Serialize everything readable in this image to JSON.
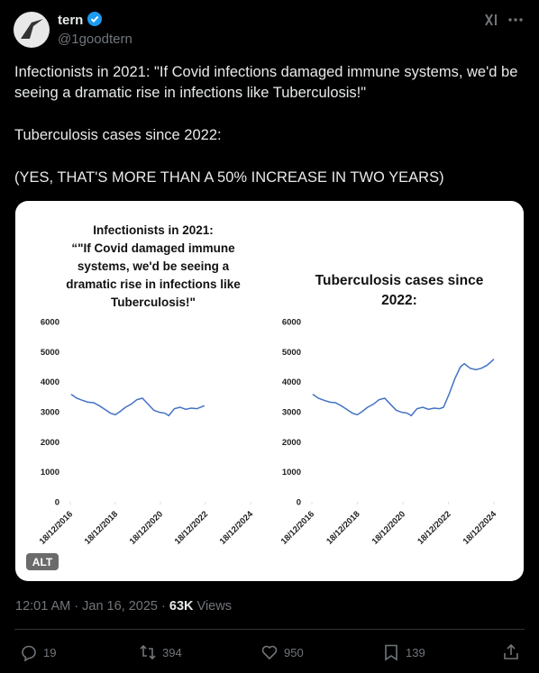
{
  "header": {
    "name": "tern",
    "handle": "@1goodtern"
  },
  "tweet": {
    "text": [
      "Infectionists in 2021: \"If Covid infections damaged immune systems, we'd be seeing a dramatic rise in infections like Tuberculosis!\"",
      "Tuberculosis cases since 2022:",
      "(YES, THAT'S MORE THAN A 50% INCREASE IN TWO YEARS)"
    ],
    "alt_badge": "ALT",
    "timestamp": "12:01 AM · Jan 16, 2025 · ",
    "views": "63K",
    "views_label": "Views"
  },
  "actions": {
    "replies": "19",
    "reposts": "394",
    "likes": "950",
    "bookmarks": "139"
  },
  "chart_data": [
    {
      "type": "line",
      "title": [
        "Infectionists in 2021:",
        "“\"If Covid damaged immune",
        "systems, we'd be seeing a",
        "dramatic rise in infections like",
        "Tuberculosis!\""
      ],
      "x": [
        "2017-01-01",
        "2017-04-01",
        "2017-07-01",
        "2017-10-01",
        "2018-01-01",
        "2018-04-01",
        "2018-07-01",
        "2018-10-01",
        "2018-12-18",
        "2019-03-01",
        "2019-06-01",
        "2019-09-01",
        "2019-12-01",
        "2020-03-01",
        "2020-06-01",
        "2020-09-01",
        "2020-12-01",
        "2021-03-01",
        "2021-05-01",
        "2021-08-01",
        "2021-11-01",
        "2022-02-01",
        "2022-05-01",
        "2022-08-01",
        "2022-12-01"
      ],
      "values": [
        3580,
        3450,
        3380,
        3320,
        3300,
        3200,
        3080,
        2950,
        2900,
        3000,
        3150,
        3250,
        3400,
        3450,
        3250,
        3050,
        2980,
        2950,
        2870,
        3100,
        3150,
        3080,
        3120,
        3100,
        3200
      ],
      "color": "#4472c4",
      "xlim": [
        "2016-12-18",
        "2024-12-18"
      ],
      "xticks": [
        {
          "value": "2016-12-18",
          "label": "18/12/2016"
        },
        {
          "value": "2018-12-18",
          "label": "18/12/2018"
        },
        {
          "value": "2020-12-18",
          "label": "18/12/2020"
        },
        {
          "value": "2022-12-18",
          "label": "18/12/2022"
        },
        {
          "value": "2024-12-18",
          "label": "18/12/2024"
        }
      ],
      "ylim": [
        0,
        6000
      ],
      "yticks": [
        0,
        1000,
        2000,
        3000,
        4000,
        5000,
        6000
      ]
    },
    {
      "type": "line",
      "title": [
        "Tuberculosis cases since",
        "2022:"
      ],
      "x": [
        "2017-01-01",
        "2017-04-01",
        "2017-07-01",
        "2017-10-01",
        "2018-01-01",
        "2018-04-01",
        "2018-07-01",
        "2018-10-01",
        "2018-12-18",
        "2019-03-01",
        "2019-06-01",
        "2019-09-01",
        "2019-12-01",
        "2020-03-01",
        "2020-06-01",
        "2020-09-01",
        "2020-12-01",
        "2021-03-01",
        "2021-05-01",
        "2021-08-01",
        "2021-11-01",
        "2022-02-01",
        "2022-05-01",
        "2022-08-01",
        "2022-10-01",
        "2023-01-01",
        "2023-04-01",
        "2023-07-01",
        "2023-09-01",
        "2023-12-01",
        "2024-03-01",
        "2024-06-01",
        "2024-09-01",
        "2024-12-18"
      ],
      "values": [
        3580,
        3450,
        3380,
        3320,
        3300,
        3200,
        3080,
        2950,
        2900,
        3000,
        3150,
        3250,
        3400,
        3450,
        3250,
        3050,
        2980,
        2950,
        2870,
        3100,
        3150,
        3080,
        3120,
        3100,
        3150,
        3600,
        4100,
        4500,
        4600,
        4450,
        4400,
        4450,
        4550,
        4750
      ],
      "color": "#4472c4",
      "xlim": [
        "2016-12-18",
        "2024-12-18"
      ],
      "xticks": [
        {
          "value": "2016-12-18",
          "label": "18/12/2016"
        },
        {
          "value": "2018-12-18",
          "label": "18/12/2018"
        },
        {
          "value": "2020-12-18",
          "label": "18/12/2020"
        },
        {
          "value": "2022-12-18",
          "label": "18/12/2022"
        },
        {
          "value": "2024-12-18",
          "label": "18/12/2024"
        }
      ],
      "ylim": [
        0,
        6000
      ],
      "yticks": [
        0,
        1000,
        2000,
        3000,
        4000,
        5000,
        6000
      ]
    }
  ]
}
